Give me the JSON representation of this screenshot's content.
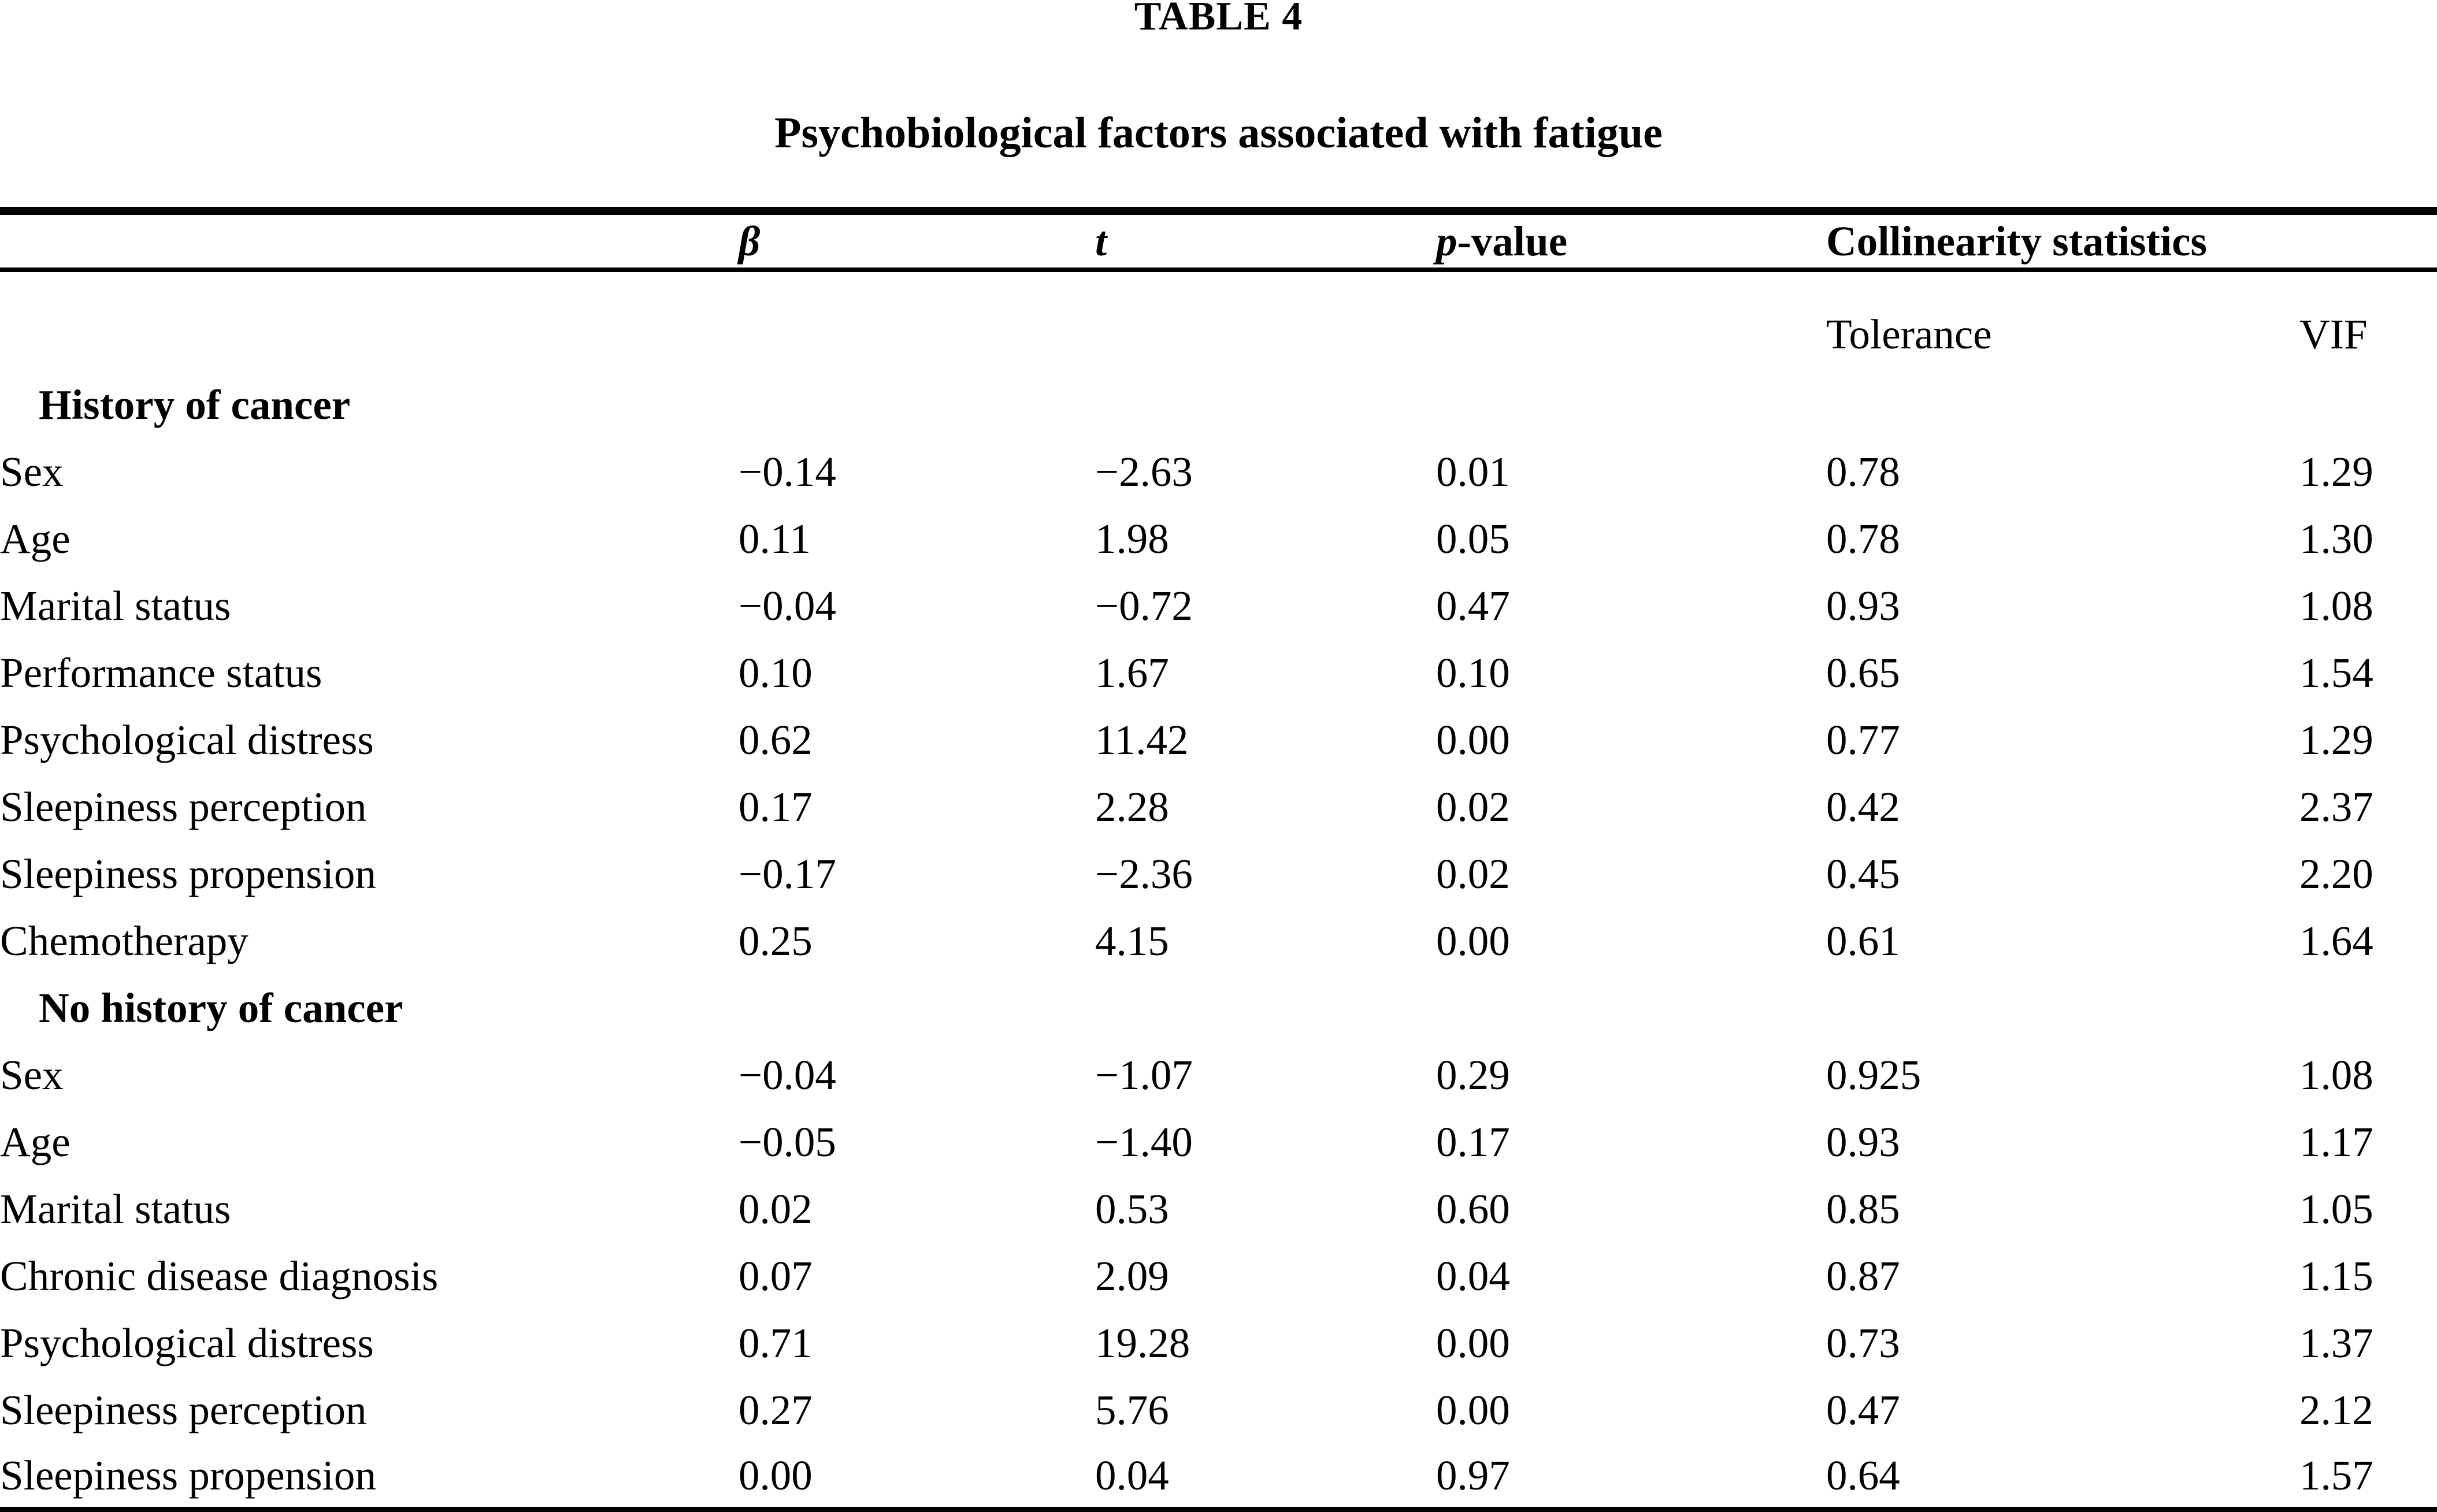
{
  "title": "TABLE 4",
  "caption": "Psychobiological factors associated with fatigue",
  "table": {
    "header": {
      "beta": "β",
      "t": "t",
      "p_italic": "p",
      "p_rest": "-value",
      "collinearity": "Collinearity statistics",
      "tolerance": "Tolerance",
      "vif": "VIF"
    },
    "sections": [
      {
        "label": "History of cancer",
        "rows": [
          {
            "label": "Sex",
            "beta": "−0.14",
            "t": "−2.63",
            "p": "0.01",
            "tolerance": "0.78",
            "vif": "1.29"
          },
          {
            "label": "Age",
            "beta": "0.11",
            "t": "1.98",
            "p": "0.05",
            "tolerance": "0.78",
            "vif": "1.30"
          },
          {
            "label": "Marital status",
            "beta": "−0.04",
            "t": "−0.72",
            "p": "0.47",
            "tolerance": "0.93",
            "vif": "1.08"
          },
          {
            "label": "Performance status",
            "beta": "0.10",
            "t": "1.67",
            "p": "0.10",
            "tolerance": "0.65",
            "vif": "1.54"
          },
          {
            "label": "Psychological distress",
            "beta": "0.62",
            "t": "11.42",
            "p": "0.00",
            "tolerance": "0.77",
            "vif": "1.29"
          },
          {
            "label": "Sleepiness perception",
            "beta": "0.17",
            "t": "2.28",
            "p": "0.02",
            "tolerance": "0.42",
            "vif": "2.37"
          },
          {
            "label": "Sleepiness propension",
            "beta": "−0.17",
            "t": "−2.36",
            "p": "0.02",
            "tolerance": "0.45",
            "vif": "2.20"
          },
          {
            "label": "Chemotherapy",
            "beta": "0.25",
            "t": "4.15",
            "p": "0.00",
            "tolerance": "0.61",
            "vif": "1.64"
          }
        ]
      },
      {
        "label": "No history of cancer",
        "rows": [
          {
            "label": "Sex",
            "beta": "−0.04",
            "t": "−1.07",
            "p": "0.29",
            "tolerance": "0.925",
            "vif": "1.08"
          },
          {
            "label": "Age",
            "beta": "−0.05",
            "t": "−1.40",
            "p": "0.17",
            "tolerance": "0.93",
            "vif": "1.17"
          },
          {
            "label": "Marital status",
            "beta": "0.02",
            "t": "0.53",
            "p": "0.60",
            "tolerance": "0.85",
            "vif": "1.05"
          },
          {
            "label": "Chronic disease diagnosis",
            "beta": "0.07",
            "t": "2.09",
            "p": "0.04",
            "tolerance": "0.87",
            "vif": "1.15"
          },
          {
            "label": "Psychological distress",
            "beta": "0.71",
            "t": "19.28",
            "p": "0.00",
            "tolerance": "0.73",
            "vif": "1.37"
          },
          {
            "label": "Sleepiness perception",
            "beta": "0.27",
            "t": "5.76",
            "p": "0.00",
            "tolerance": "0.47",
            "vif": "2.12"
          },
          {
            "label": "Sleepiness propension",
            "beta": "0.00",
            "t": "0.04",
            "p": "0.97",
            "tolerance": "0.64",
            "vif": "1.57"
          }
        ]
      }
    ]
  }
}
